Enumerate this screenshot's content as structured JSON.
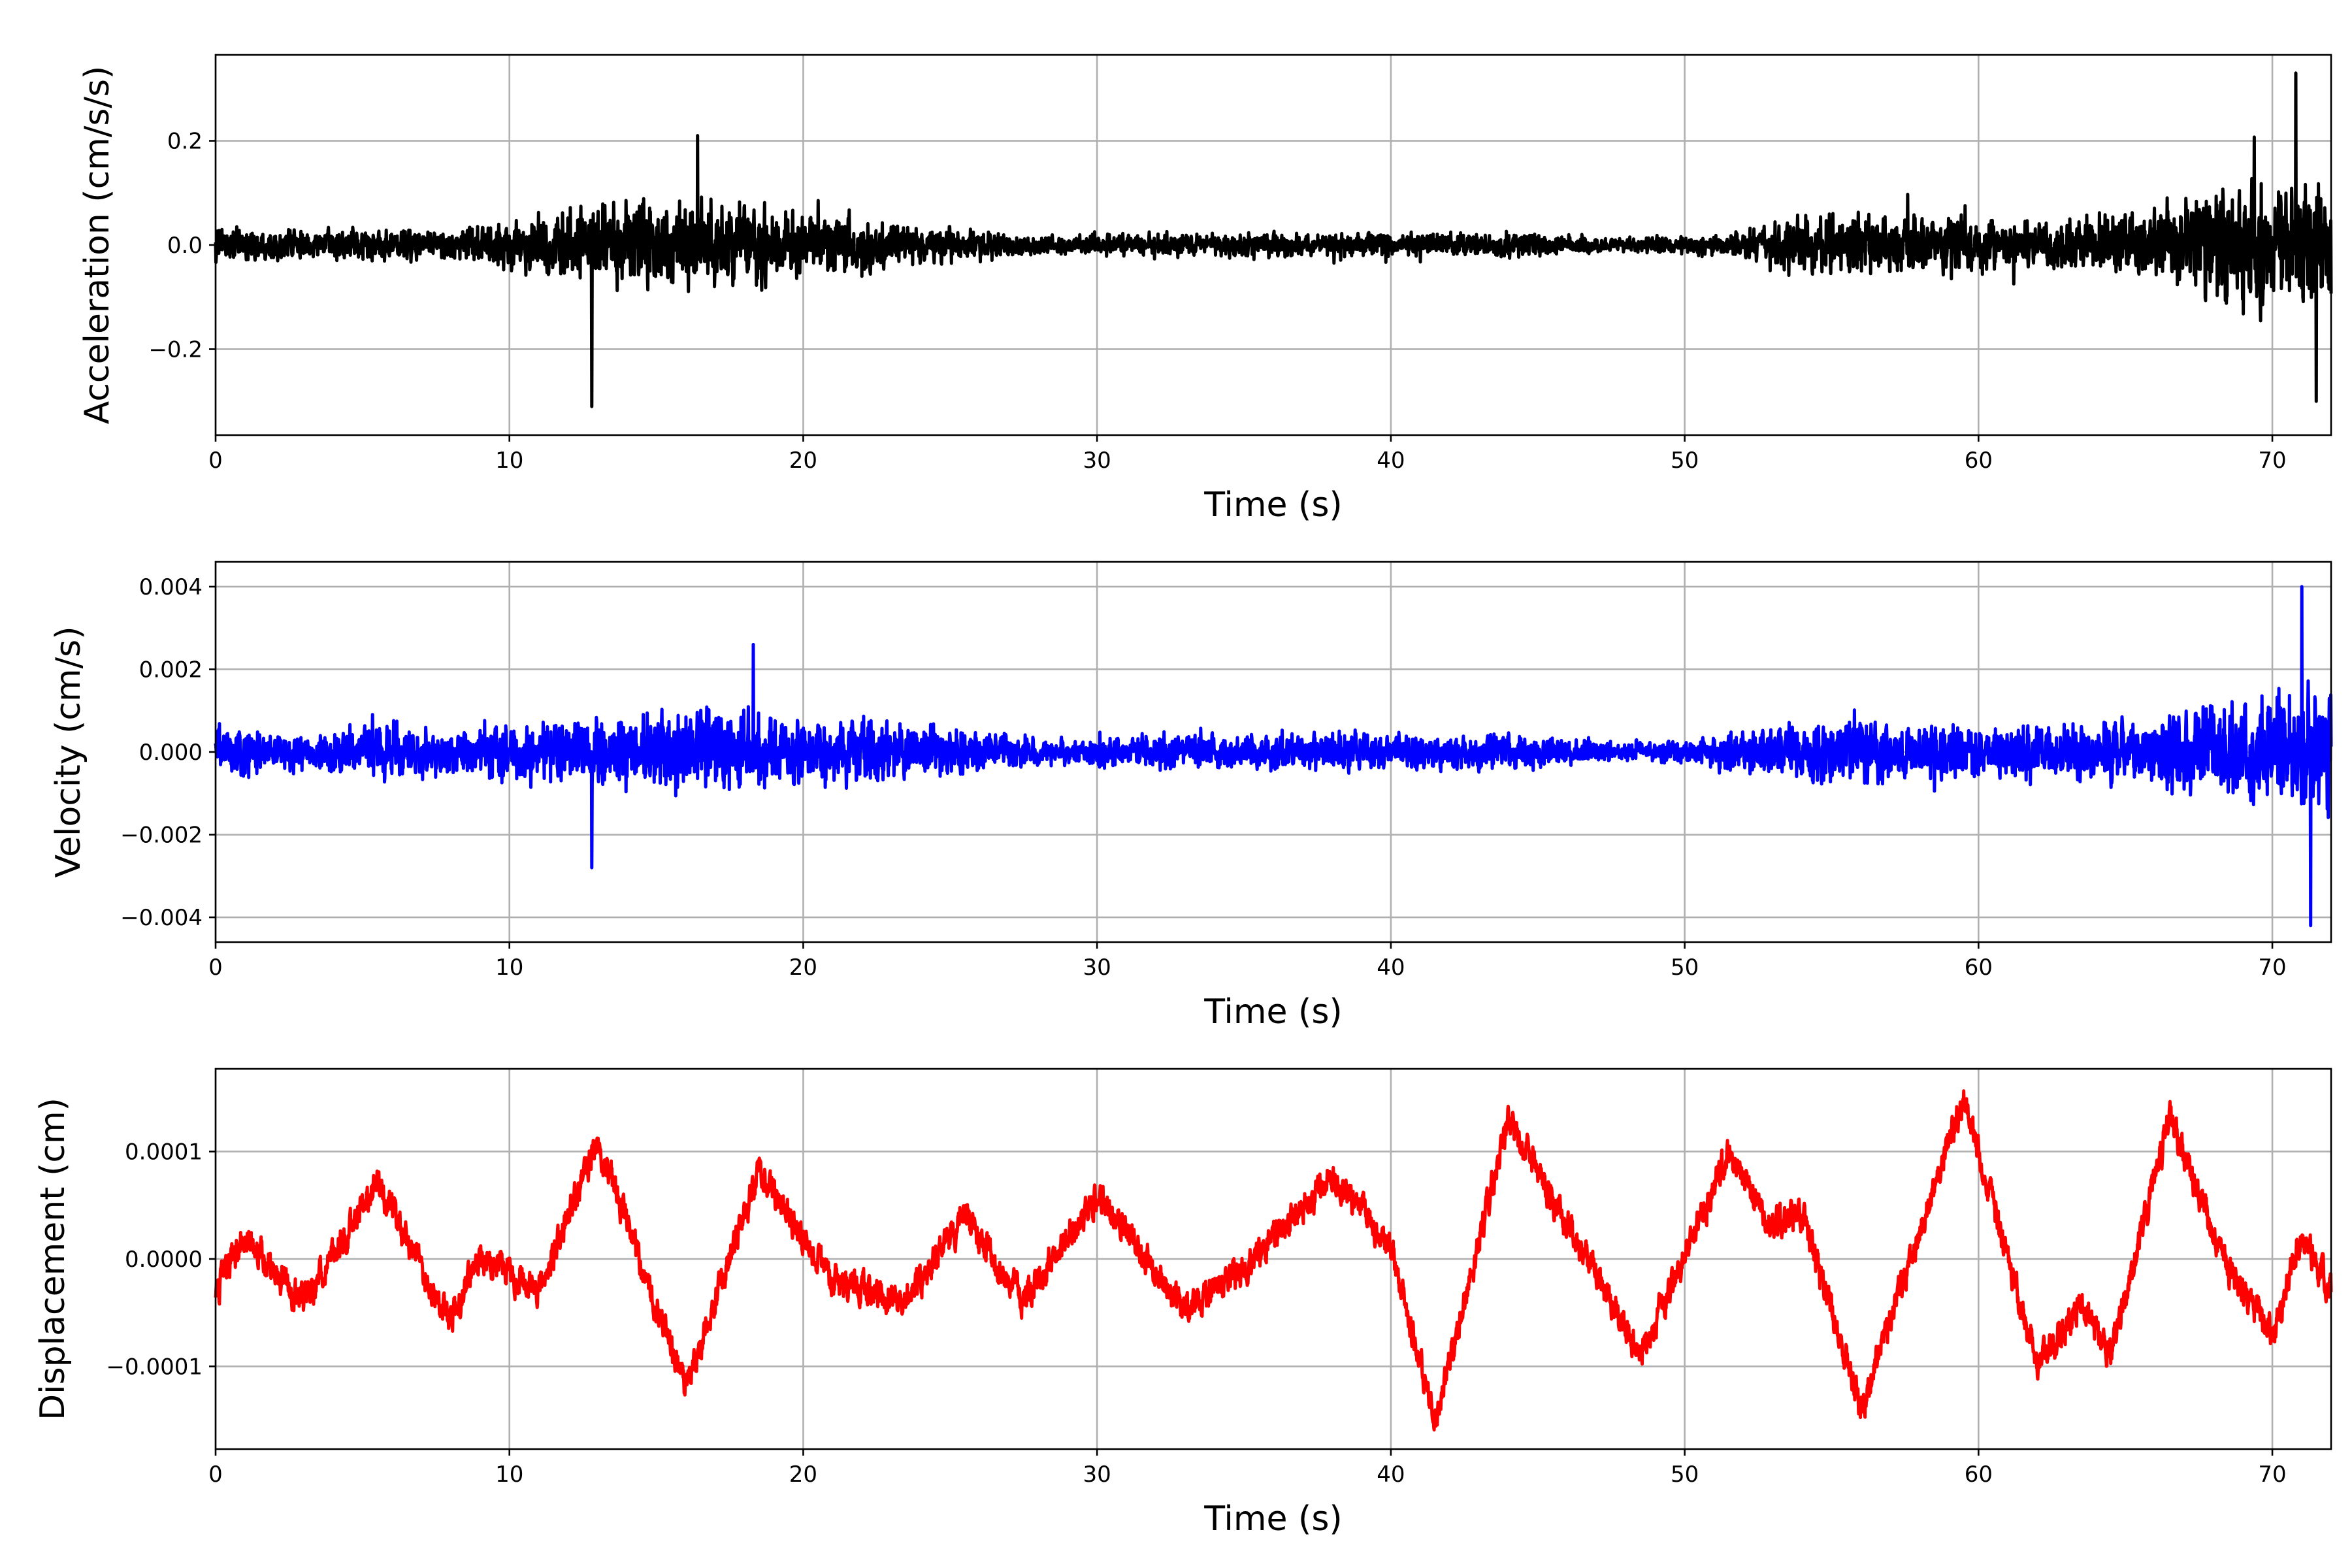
{
  "chart_data": [
    {
      "type": "line",
      "title": "",
      "xlabel": "Time (s)",
      "ylabel": "Acceleration (cm/s/s)",
      "xlim": [
        0,
        72
      ],
      "ylim": [
        -0.365,
        0.365
      ],
      "xticks": [
        0,
        10,
        20,
        30,
        40,
        50,
        60,
        70
      ],
      "xtick_labels": [
        "0",
        "10",
        "20",
        "30",
        "40",
        "50",
        "60",
        "70"
      ],
      "yticks": [
        -0.2,
        0.0,
        0.2
      ],
      "ytick_labels": [
        "−0.2",
        "0.0",
        "0.2"
      ],
      "grid": true,
      "color": "#000000",
      "signal": "broadband noise, amplitude envelope sampled every 2 s",
      "envelope": {
        "t": [
          0,
          2,
          4,
          6,
          8,
          10,
          12,
          14,
          16,
          18,
          20,
          22,
          24,
          26,
          28,
          30,
          32,
          34,
          36,
          38,
          40,
          42,
          44,
          46,
          48,
          50,
          52,
          54,
          56,
          58,
          60,
          62,
          64,
          66,
          68,
          70,
          72
        ],
        "amp": [
          0.08,
          0.06,
          0.06,
          0.08,
          0.07,
          0.1,
          0.16,
          0.19,
          0.2,
          0.2,
          0.14,
          0.11,
          0.08,
          0.07,
          0.04,
          0.04,
          0.05,
          0.05,
          0.06,
          0.05,
          0.05,
          0.05,
          0.06,
          0.04,
          0.03,
          0.04,
          0.06,
          0.12,
          0.16,
          0.13,
          0.12,
          0.1,
          0.12,
          0.14,
          0.26,
          0.28,
          0.3
        ]
      },
      "extremes": [
        {
          "t": 12.8,
          "y": -0.31
        },
        {
          "t": 16.4,
          "y": 0.21
        },
        {
          "t": 70.8,
          "y": 0.33
        },
        {
          "t": 71.5,
          "y": -0.3
        }
      ]
    },
    {
      "type": "line",
      "title": "",
      "xlabel": "Time (s)",
      "ylabel": "Velocity (cm/s)",
      "xlim": [
        0,
        72
      ],
      "ylim": [
        -0.0046,
        0.0046
      ],
      "xticks": [
        0,
        10,
        20,
        30,
        40,
        50,
        60,
        70
      ],
      "xtick_labels": [
        "0",
        "10",
        "20",
        "30",
        "40",
        "50",
        "60",
        "70"
      ],
      "yticks": [
        -0.004,
        -0.002,
        0.0,
        0.002,
        0.004
      ],
      "ytick_labels": [
        "−0.004",
        "−0.002",
        "0.000",
        "0.002",
        "0.004"
      ],
      "grid": true,
      "color": "#0000ff",
      "signal": "broadband noise, amplitude envelope sampled every 2 s",
      "envelope": {
        "t": [
          0,
          2,
          4,
          6,
          8,
          10,
          12,
          14,
          16,
          18,
          20,
          22,
          24,
          26,
          28,
          30,
          32,
          34,
          36,
          38,
          40,
          42,
          44,
          46,
          48,
          50,
          52,
          54,
          56,
          58,
          60,
          62,
          64,
          66,
          68,
          70,
          72
        ],
        "amp": [
          0.0015,
          0.0011,
          0.0012,
          0.0015,
          0.0013,
          0.0017,
          0.0018,
          0.002,
          0.0023,
          0.0022,
          0.0018,
          0.0019,
          0.0014,
          0.0012,
          0.0008,
          0.0007,
          0.001,
          0.001,
          0.001,
          0.0011,
          0.0011,
          0.0009,
          0.0011,
          0.0007,
          0.0005,
          0.0007,
          0.0012,
          0.0017,
          0.0017,
          0.0017,
          0.0016,
          0.0014,
          0.0015,
          0.0018,
          0.0025,
          0.003,
          0.0035
        ]
      },
      "extremes": [
        {
          "t": 18.3,
          "y": 0.0026
        },
        {
          "t": 12.8,
          "y": -0.0028
        },
        {
          "t": 71.0,
          "y": 0.004
        },
        {
          "t": 71.3,
          "y": -0.0042
        }
      ]
    },
    {
      "type": "line",
      "title": "",
      "xlabel": "Time (s)",
      "ylabel": "Displacement (cm)",
      "xlim": [
        0,
        72
      ],
      "ylim": [
        -0.000177,
        0.000177
      ],
      "xticks": [
        0,
        10,
        20,
        30,
        40,
        50,
        60,
        70
      ],
      "xtick_labels": [
        "0",
        "10",
        "20",
        "30",
        "40",
        "50",
        "60",
        "70"
      ],
      "yticks": [
        -0.0001,
        0.0,
        0.0001
      ],
      "ytick_labels": [
        "−0.0001",
        "0.0000",
        "0.0001"
      ],
      "grid": true,
      "color": "#ff0000",
      "signal": "slow oscillation plus small jitter",
      "trend": {
        "t": [
          0,
          1,
          3,
          5.5,
          8,
          9,
          11,
          13,
          16,
          18.5,
          21,
          23.5,
          25.5,
          27.5,
          30,
          33,
          35,
          38,
          40,
          41.5,
          44,
          48.5,
          51.5,
          53,
          54,
          56,
          59.5,
          62,
          63.5,
          64.5,
          66.5,
          68.5,
          70,
          71,
          72
        ],
        "y": [
          -3e-05,
          2e-05,
          -4e-05,
          7e-05,
          -6e-05,
          0.0,
          -3e-05,
          0.00011,
          -0.00012,
          8e-05,
          -2e-05,
          -4e-05,
          4e-05,
          -4e-05,
          6e-05,
          -5e-05,
          -1e-05,
          8e-05,
          1e-05,
          -0.00015,
          0.00013,
          -9e-05,
          0.0001,
          3e-05,
          4e-05,
          -0.00014,
          0.00015,
          -0.0001,
          -4e-05,
          -9e-05,
          0.00013,
          -1e-05,
          -7e-05,
          2e-05,
          -3e-05
        ]
      },
      "jitter": 1.2e-05
    }
  ]
}
